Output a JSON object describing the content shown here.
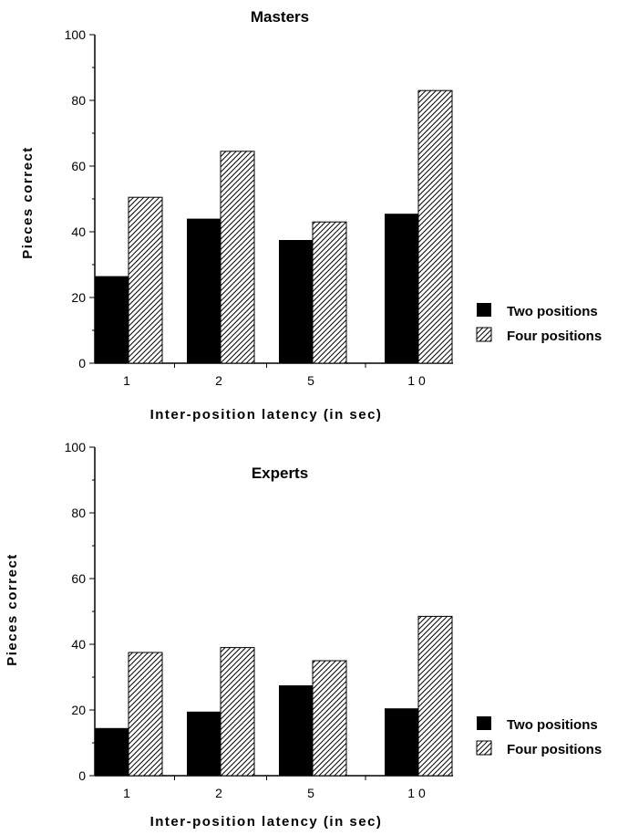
{
  "legend": {
    "two_label": "Two positions",
    "four_label": "Four positions"
  },
  "chart_data": [
    {
      "type": "bar",
      "title": "Masters",
      "xlabel": "Inter-position latency (in sec)",
      "ylabel": "Pieces correct",
      "categories": [
        "1",
        "2",
        "5",
        "10"
      ],
      "ylim": [
        0,
        100
      ],
      "yticks": [
        0,
        20,
        40,
        60,
        80,
        100
      ],
      "series": [
        {
          "name": "Two positions",
          "values": [
            26.5,
            44,
            37.5,
            45.5
          ],
          "fill": "solid-black"
        },
        {
          "name": "Four positions",
          "values": [
            50.5,
            64.5,
            43,
            83
          ],
          "fill": "hatched"
        }
      ],
      "legend_position": "right"
    },
    {
      "type": "bar",
      "title": "Experts",
      "xlabel": "Inter-position latency (in sec)",
      "ylabel": "Pieces correct",
      "categories": [
        "1",
        "2",
        "5",
        "10"
      ],
      "ylim": [
        0,
        100
      ],
      "yticks": [
        0,
        20,
        40,
        60,
        80,
        100
      ],
      "series": [
        {
          "name": "Two positions",
          "values": [
            14.5,
            19.5,
            27.5,
            20.5
          ],
          "fill": "solid-black"
        },
        {
          "name": "Four positions",
          "values": [
            37.5,
            39,
            35,
            48.5
          ],
          "fill": "hatched"
        }
      ],
      "legend_position": "right"
    }
  ]
}
